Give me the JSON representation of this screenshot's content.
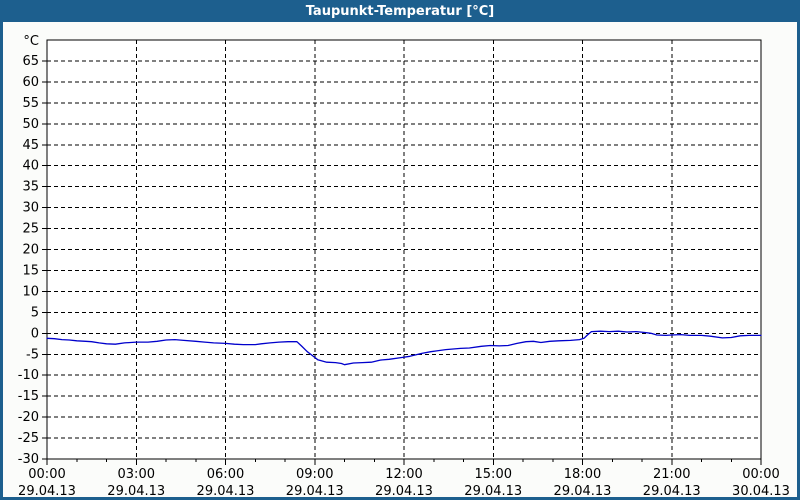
{
  "window": {
    "title": "Taupunkt-Temperatur [°C]",
    "colors": {
      "title_bar": "#1d5f8e",
      "border": "#1d5f8e",
      "background": "#fbfcfa",
      "plot_background": "#ffffff",
      "axis": "#000000",
      "grid": "#000000",
      "line": "#0000cc"
    }
  },
  "chart_data": {
    "type": "line",
    "title": "Taupunkt-Temperatur [°C]",
    "ylabel": "°C",
    "ylim": [
      -30,
      70
    ],
    "y_ticks": [
      65,
      60,
      55,
      50,
      45,
      40,
      35,
      30,
      25,
      20,
      15,
      10,
      5,
      0,
      -5,
      -10,
      -15,
      -20,
      -25,
      -30
    ],
    "xlim_hours": [
      0,
      24
    ],
    "x_ticks": [
      {
        "hour": 0,
        "time": "00:00",
        "date": "29.04.13"
      },
      {
        "hour": 3,
        "time": "03:00",
        "date": "29.04.13"
      },
      {
        "hour": 6,
        "time": "06:00",
        "date": "29.04.13"
      },
      {
        "hour": 9,
        "time": "09:00",
        "date": "29.04.13"
      },
      {
        "hour": 12,
        "time": "12:00",
        "date": "29.04.13"
      },
      {
        "hour": 15,
        "time": "15:00",
        "date": "29.04.13"
      },
      {
        "hour": 18,
        "time": "18:00",
        "date": "29.04.13"
      },
      {
        "hour": 21,
        "time": "21:00",
        "date": "29.04.13"
      },
      {
        "hour": 24,
        "time": "00:00",
        "date": "30.04.13"
      }
    ],
    "minor_tick_every_hours": 1,
    "grid": "dashed",
    "legend": "none",
    "series": [
      {
        "name": "Taupunkt-Temperatur",
        "color": "#0000cc",
        "points": [
          [
            0.0,
            -1.2
          ],
          [
            0.25,
            -1.3
          ],
          [
            0.5,
            -1.5
          ],
          [
            0.75,
            -1.6
          ],
          [
            1.0,
            -1.8
          ],
          [
            1.3,
            -1.9
          ],
          [
            1.5,
            -2.0
          ],
          [
            1.75,
            -2.3
          ],
          [
            2.0,
            -2.5
          ],
          [
            2.3,
            -2.6
          ],
          [
            2.6,
            -2.3
          ],
          [
            3.0,
            -2.1
          ],
          [
            3.4,
            -2.1
          ],
          [
            3.7,
            -1.9
          ],
          [
            4.0,
            -1.6
          ],
          [
            4.3,
            -1.5
          ],
          [
            4.6,
            -1.7
          ],
          [
            5.0,
            -1.9
          ],
          [
            5.3,
            -2.1
          ],
          [
            5.6,
            -2.3
          ],
          [
            6.0,
            -2.4
          ],
          [
            6.3,
            -2.6
          ],
          [
            6.6,
            -2.7
          ],
          [
            7.0,
            -2.7
          ],
          [
            7.2,
            -2.5
          ],
          [
            7.5,
            -2.3
          ],
          [
            7.8,
            -2.1
          ],
          [
            8.1,
            -2.0
          ],
          [
            8.4,
            -2.0
          ],
          [
            8.55,
            -3.0
          ],
          [
            8.75,
            -4.4
          ],
          [
            8.9,
            -5.2
          ],
          [
            9.1,
            -6.3
          ],
          [
            9.4,
            -6.9
          ],
          [
            9.7,
            -7.0
          ],
          [
            9.9,
            -7.2
          ],
          [
            10.0,
            -7.5
          ],
          [
            10.3,
            -7.1
          ],
          [
            10.6,
            -7.0
          ],
          [
            10.9,
            -6.9
          ],
          [
            11.2,
            -6.4
          ],
          [
            11.5,
            -6.2
          ],
          [
            11.9,
            -5.8
          ],
          [
            12.2,
            -5.5
          ],
          [
            12.6,
            -4.8
          ],
          [
            12.9,
            -4.4
          ],
          [
            13.1,
            -4.2
          ],
          [
            13.4,
            -3.9
          ],
          [
            13.9,
            -3.6
          ],
          [
            14.2,
            -3.5
          ],
          [
            14.6,
            -3.1
          ],
          [
            14.9,
            -2.9
          ],
          [
            15.2,
            -3.0
          ],
          [
            15.5,
            -2.9
          ],
          [
            15.8,
            -2.4
          ],
          [
            16.1,
            -2.0
          ],
          [
            16.35,
            -1.9
          ],
          [
            16.6,
            -2.2
          ],
          [
            16.9,
            -1.9
          ],
          [
            17.2,
            -1.8
          ],
          [
            17.6,
            -1.7
          ],
          [
            17.9,
            -1.5
          ],
          [
            18.05,
            -1.2
          ],
          [
            18.15,
            -0.5
          ],
          [
            18.3,
            0.4
          ],
          [
            18.6,
            0.5
          ],
          [
            18.9,
            0.4
          ],
          [
            19.2,
            0.5
          ],
          [
            19.5,
            0.3
          ],
          [
            19.8,
            0.4
          ],
          [
            20.1,
            0.2
          ],
          [
            20.3,
            0.0
          ],
          [
            20.5,
            -0.4
          ],
          [
            20.8,
            -0.5
          ],
          [
            21.0,
            -0.4
          ],
          [
            21.3,
            -0.3
          ],
          [
            21.6,
            -0.5
          ],
          [
            22.0,
            -0.5
          ],
          [
            22.3,
            -0.7
          ],
          [
            22.7,
            -1.1
          ],
          [
            23.0,
            -1.0
          ],
          [
            23.3,
            -0.6
          ],
          [
            23.6,
            -0.5
          ],
          [
            24.0,
            -0.5
          ]
        ]
      }
    ]
  }
}
